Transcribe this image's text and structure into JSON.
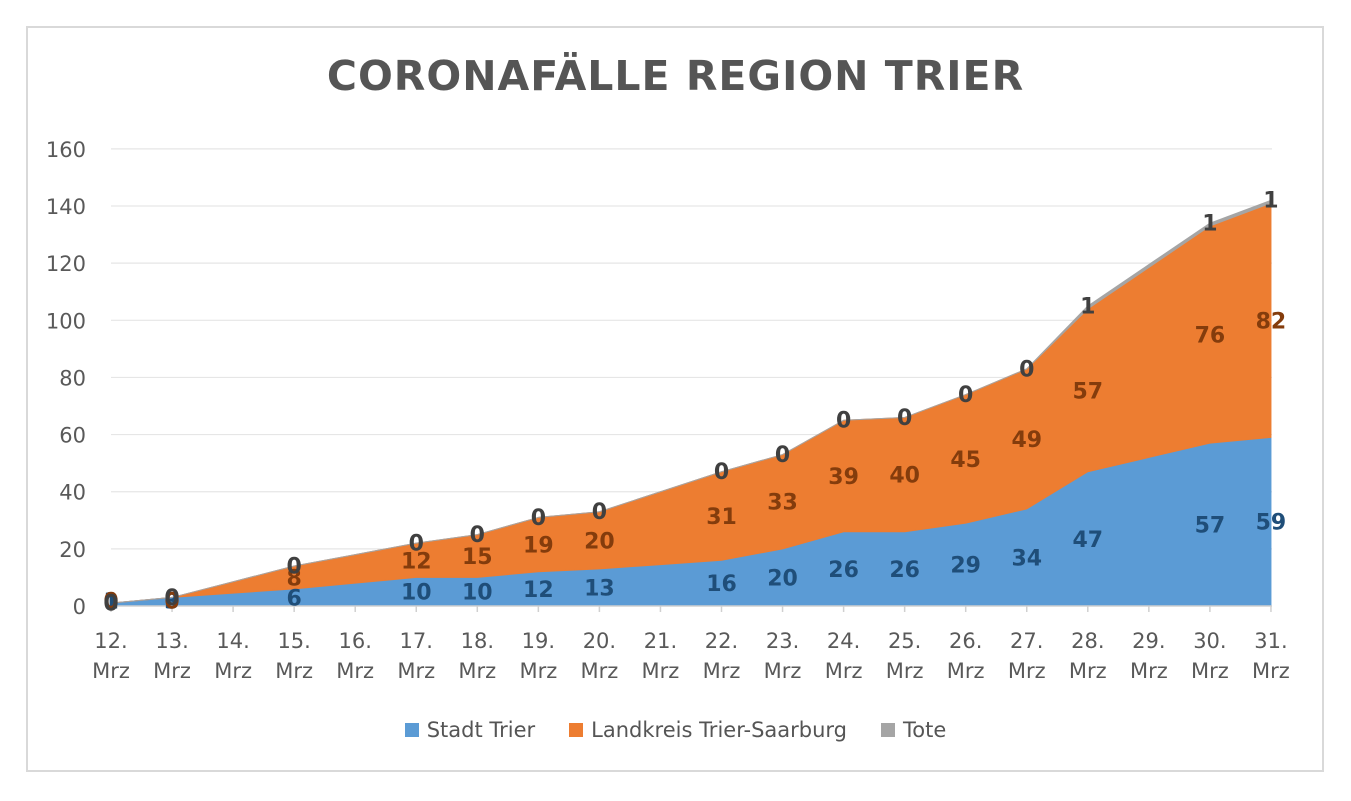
{
  "chart_data": {
    "type": "area",
    "stacked": true,
    "title": "CORONAFÄLLE REGION TRIER",
    "categories": [
      [
        "12.",
        "Mrz"
      ],
      [
        "13.",
        "Mrz"
      ],
      [
        "14.",
        "Mrz"
      ],
      [
        "15.",
        "Mrz"
      ],
      [
        "16.",
        "Mrz"
      ],
      [
        "17.",
        "Mrz"
      ],
      [
        "18.",
        "Mrz"
      ],
      [
        "19.",
        "Mrz"
      ],
      [
        "20.",
        "Mrz"
      ],
      [
        "21.",
        "Mrz"
      ],
      [
        "22.",
        "Mrz"
      ],
      [
        "23.",
        "Mrz"
      ],
      [
        "24.",
        "Mrz"
      ],
      [
        "25.",
        "Mrz"
      ],
      [
        "26.",
        "Mrz"
      ],
      [
        "27.",
        "Mrz"
      ],
      [
        "28.",
        "Mrz"
      ],
      [
        "29.",
        "Mrz"
      ],
      [
        "30.",
        "Mrz"
      ],
      [
        "31.",
        "Mrz"
      ]
    ],
    "ylim": [
      0,
      160
    ],
    "yticks": [
      0,
      20,
      40,
      60,
      80,
      100,
      120,
      140,
      160
    ],
    "grid": true,
    "legend_position": "bottom",
    "series": [
      {
        "name": "Stadt Trier",
        "color": "#5b9bd5",
        "label_color": "#1f4e79",
        "values": [
          1,
          3,
          4.5,
          6,
          8,
          10,
          10,
          12,
          13,
          14.5,
          16,
          20,
          26,
          26,
          29,
          34,
          47,
          52,
          57,
          59
        ],
        "labels": [
          "1",
          "3",
          null,
          "6",
          null,
          "10",
          "10",
          "12",
          "13",
          null,
          "16",
          "20",
          "26",
          "26",
          "29",
          "34",
          "47",
          null,
          "57",
          "59"
        ]
      },
      {
        "name": "Landkreis Trier-Saarburg",
        "color": "#ed7d31",
        "label_color": "#843c0c",
        "values": [
          0,
          0,
          4,
          8,
          10,
          12,
          15,
          19,
          20,
          25.5,
          31,
          33,
          39,
          40,
          45,
          49,
          57,
          66.5,
          76,
          82
        ],
        "labels": [
          "0",
          "0",
          null,
          "8",
          null,
          "12",
          "15",
          "19",
          "20",
          null,
          "31",
          "33",
          "39",
          "40",
          "45",
          "49",
          "57",
          null,
          "76",
          "82"
        ]
      },
      {
        "name": "Tote",
        "color": "#a5a5a5",
        "label_color": "#404040",
        "values": [
          0,
          0,
          0,
          0,
          0,
          0,
          0,
          0,
          0,
          0,
          0,
          0,
          0,
          0,
          0,
          0,
          1,
          1,
          1,
          1
        ],
        "labels": [
          "0",
          "0",
          null,
          "0",
          null,
          "0",
          "0",
          "0",
          "0",
          null,
          "0",
          "0",
          "0",
          "0",
          "0",
          "0",
          "1",
          null,
          "1",
          "1"
        ]
      }
    ]
  }
}
